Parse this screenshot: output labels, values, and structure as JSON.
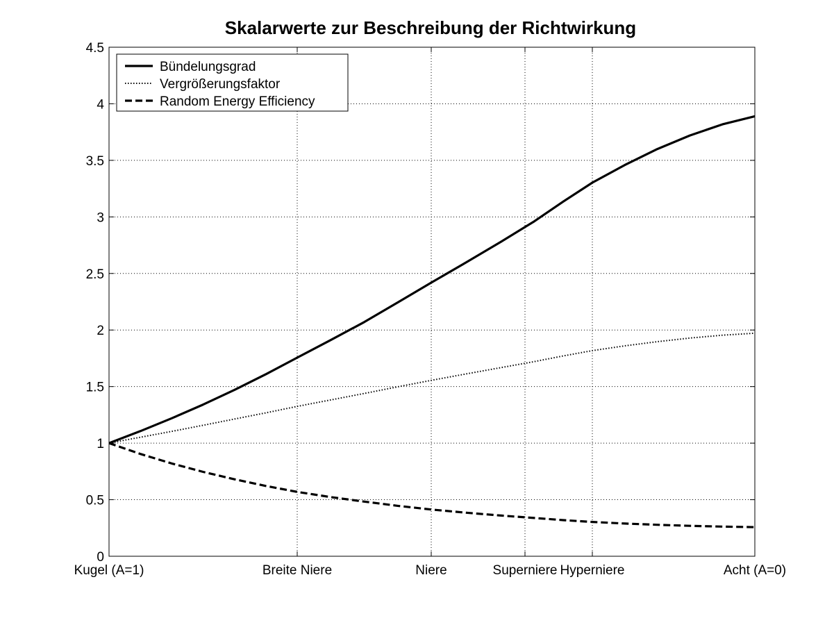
{
  "chart_data": {
    "type": "line",
    "title": "Skalarwerte zur Beschreibung der Richtwirkung",
    "xlabel": "",
    "ylabel": "",
    "xlim": [
      1,
      0
    ],
    "ylim": [
      0,
      4.5
    ],
    "yticks": [
      0,
      0.5,
      1,
      1.5,
      2,
      2.5,
      3,
      3.5,
      4,
      4.5
    ],
    "ytick_labels": [
      "0",
      "0.5",
      "1",
      "1.5",
      "2",
      "2.5",
      "3",
      "3.5",
      "4",
      "4.5"
    ],
    "xticks": [
      {
        "A": 1.0,
        "label": "Kugel (A=1)"
      },
      {
        "A": 0.7,
        "label": "Breite Niere"
      },
      {
        "A": 0.5,
        "label": "Niere"
      },
      {
        "A": 0.366,
        "label": "Superniere"
      },
      {
        "A": 0.25,
        "label": "Hyperniere"
      },
      {
        "A": 0.0,
        "label": "Acht (A=0)"
      }
    ],
    "grid": true,
    "legend_position": "top-left",
    "series": [
      {
        "name": "Bündelungsgrad",
        "style": "solid",
        "color": "#000000",
        "points": [
          [
            1.0,
            1.0
          ],
          [
            0.95,
            1.106
          ],
          [
            0.9,
            1.22
          ],
          [
            0.85,
            1.341
          ],
          [
            0.8,
            1.471
          ],
          [
            0.75,
            1.609
          ],
          [
            0.7,
            1.756
          ],
          [
            0.65,
            1.911
          ],
          [
            0.6,
            2.07
          ],
          [
            0.55,
            2.244
          ],
          [
            0.5,
            2.419
          ],
          [
            0.45,
            2.598
          ],
          [
            0.4,
            2.781
          ],
          [
            0.35,
            2.961
          ],
          [
            0.3,
            3.136
          ],
          [
            0.25,
            3.303
          ],
          [
            0.2,
            3.459
          ],
          [
            0.15,
            3.6
          ],
          [
            0.1,
            3.72
          ],
          [
            0.05,
            3.818
          ],
          [
            0.0,
            3.89
          ]
        ]
      },
      {
        "name": "Vergrößerungsfaktor",
        "style": "dotted",
        "color": "#000000",
        "points": [
          [
            1.0,
            1.0
          ],
          [
            0.95,
            1.052
          ],
          [
            0.9,
            1.104
          ],
          [
            0.85,
            1.158
          ],
          [
            0.8,
            1.213
          ],
          [
            0.75,
            1.268
          ],
          [
            0.7,
            1.325
          ],
          [
            0.65,
            1.382
          ],
          [
            0.6,
            1.439
          ],
          [
            0.55,
            1.498
          ],
          [
            0.5,
            1.555
          ],
          [
            0.45,
            1.612
          ],
          [
            0.4,
            1.668
          ],
          [
            0.35,
            1.721
          ],
          [
            0.3,
            1.771
          ],
          [
            0.25,
            1.818
          ],
          [
            0.2,
            1.86
          ],
          [
            0.15,
            1.897
          ],
          [
            0.1,
            1.929
          ],
          [
            0.05,
            1.954
          ],
          [
            0.0,
            1.972
          ]
        ]
      },
      {
        "name": "Random Energy Efficiency",
        "style": "dashed",
        "color": "#000000",
        "points": [
          [
            1.0,
            1.0
          ],
          [
            0.95,
            0.904
          ],
          [
            0.9,
            0.82
          ],
          [
            0.85,
            0.746
          ],
          [
            0.8,
            0.68
          ],
          [
            0.75,
            0.621
          ],
          [
            0.7,
            0.569
          ],
          [
            0.65,
            0.523
          ],
          [
            0.6,
            0.483
          ],
          [
            0.55,
            0.446
          ],
          [
            0.5,
            0.413
          ],
          [
            0.45,
            0.385
          ],
          [
            0.4,
            0.36
          ],
          [
            0.35,
            0.338
          ],
          [
            0.3,
            0.319
          ],
          [
            0.25,
            0.303
          ],
          [
            0.2,
            0.289
          ],
          [
            0.15,
            0.278
          ],
          [
            0.1,
            0.269
          ],
          [
            0.05,
            0.262
          ],
          [
            0.0,
            0.257
          ]
        ]
      }
    ]
  }
}
